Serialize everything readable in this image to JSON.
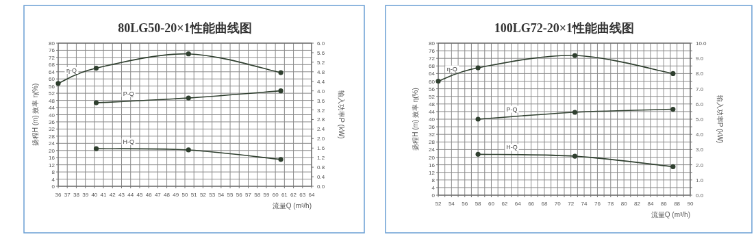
{
  "chart_data": [
    {
      "type": "line",
      "title": "80LG50-20×1性能曲线图",
      "xlabel": "流量Q (m³/h)",
      "ylabel": "扬程H (m)  效率 η(%)",
      "y2label": "输入功率P (kW)",
      "xlim": [
        36,
        64
      ],
      "xticks": [
        36,
        37,
        38,
        39,
        40,
        41,
        42,
        43,
        44,
        45,
        46,
        47,
        48,
        49,
        50,
        51,
        52,
        53,
        54,
        55,
        56,
        57,
        58,
        59,
        60,
        61,
        62,
        63,
        64
      ],
      "ylim": [
        0,
        80
      ],
      "yticks": [
        0,
        4,
        8,
        12,
        16,
        20,
        24,
        28,
        32,
        36,
        40,
        44,
        48,
        52,
        56,
        60,
        64,
        68,
        72,
        76,
        80
      ],
      "y2lim": [
        0,
        6
      ],
      "y2ticks": [
        {
          "value": 0,
          "label": "0.0"
        },
        {
          "value": 0.4,
          "label": "0.4"
        },
        {
          "value": 0.8,
          "label": "0.8"
        },
        {
          "value": 1.2,
          "label": "1.2"
        },
        {
          "value": 1.6,
          "label": "1.6"
        },
        {
          "value": 2,
          "label": "2.0"
        },
        {
          "value": 2.4,
          "label": "2.4"
        },
        {
          "value": 2.8,
          "label": "2.8"
        },
        {
          "value": 3.2,
          "label": "3.2"
        },
        {
          "value": 3.6,
          "label": "3.6"
        },
        {
          "value": 4,
          "label": "4.0"
        },
        {
          "value": 4.4,
          "label": "4.4"
        },
        {
          "value": 4.8,
          "label": "4.8"
        },
        {
          "value": 5.2,
          "label": "5.2"
        },
        {
          "value": 5.6,
          "label": "5.6"
        },
        {
          "value": 6,
          "label": "6.0"
        }
      ],
      "grid": true,
      "marker": "circle",
      "series": [
        {
          "name": "η-Q",
          "color": "#2f3f2f",
          "x": [
            36,
            40.2,
            50.4,
            60.6
          ],
          "values": [
            57.5,
            66,
            74,
            63.5
          ]
        },
        {
          "name": "P-Q",
          "color": "#2f3f2f",
          "axis": "y2",
          "x": [
            40.2,
            50.4,
            60.6
          ],
          "values": [
            3.5,
            3.7,
            4.0
          ]
        },
        {
          "name": "H-Q",
          "color": "#2f3f2f",
          "x": [
            40.2,
            50.4,
            60.6
          ],
          "values": [
            21,
            20.3,
            15
          ]
        }
      ]
    },
    {
      "type": "line",
      "title": "100LG72-20×1性能曲线图",
      "xlabel": "流量Q (m³/h)",
      "ylabel": "扬程H (m)  效率 η(%)",
      "y2label": "输入功率P (kW)",
      "xlim": [
        52,
        90
      ],
      "xticks": [
        52,
        {
          "value": 53,
          "label": null
        },
        54,
        {
          "value": 55,
          "label": null
        },
        56,
        {
          "value": 57,
          "label": null
        },
        58,
        {
          "value": 59,
          "label": null
        },
        60,
        {
          "value": 61,
          "label": null
        },
        62,
        {
          "value": 63,
          "label": null
        },
        64,
        {
          "value": 65,
          "label": null
        },
        66,
        {
          "value": 67,
          "label": null
        },
        68,
        {
          "value": 69,
          "label": null
        },
        70,
        {
          "value": 71,
          "label": null
        },
        72,
        {
          "value": 73,
          "label": null
        },
        74,
        {
          "value": 75,
          "label": null
        },
        76,
        {
          "value": 77,
          "label": null
        },
        78,
        {
          "value": 79,
          "label": null
        },
        80,
        {
          "value": 81,
          "label": null
        },
        82,
        {
          "value": 83,
          "label": null
        },
        84,
        {
          "value": 85,
          "label": null
        },
        86,
        {
          "value": 87,
          "label": null
        },
        88,
        {
          "value": 89,
          "label": null
        },
        90
      ],
      "ylim": [
        0,
        80
      ],
      "yticks": [
        0,
        4,
        8,
        12,
        16,
        20,
        24,
        28,
        32,
        36,
        40,
        44,
        48,
        52,
        56,
        60,
        64,
        68,
        72,
        76,
        80
      ],
      "y2lim": [
        0,
        10
      ],
      "y2ticks": [
        {
          "value": 0,
          "label": "0.0"
        },
        {
          "value": 0.5,
          "label": null
        },
        {
          "value": 1,
          "label": "1.0"
        },
        {
          "value": 1.5,
          "label": null
        },
        {
          "value": 2,
          "label": "2.0"
        },
        {
          "value": 2.5,
          "label": null
        },
        {
          "value": 3,
          "label": "3.0"
        },
        {
          "value": 3.5,
          "label": null
        },
        {
          "value": 4,
          "label": "4.0"
        },
        {
          "value": 4.5,
          "label": null
        },
        {
          "value": 5,
          "label": "5.0"
        },
        {
          "value": 5.5,
          "label": null
        },
        {
          "value": 6,
          "label": "6.0"
        },
        {
          "value": 6.5,
          "label": null
        },
        {
          "value": 7,
          "label": "7.0"
        },
        {
          "value": 7.5,
          "label": null
        },
        {
          "value": 8,
          "label": "8.0"
        },
        {
          "value": 8.5,
          "label": null
        },
        {
          "value": 9,
          "label": "9.0"
        },
        {
          "value": 9.5,
          "label": null
        },
        {
          "value": 10,
          "label": "10.0"
        }
      ],
      "grid": true,
      "marker": "circle",
      "series": [
        {
          "name": "η-Q",
          "color": "#2f3f2f",
          "x": [
            52,
            58,
            72.6,
            87.4
          ],
          "values": [
            60,
            67,
            73.5,
            64
          ]
        },
        {
          "name": "P-Q",
          "color": "#2f3f2f",
          "axis": "y2",
          "x": [
            58,
            72.6,
            87.4
          ],
          "values": [
            5.0,
            5.45,
            5.65
          ]
        },
        {
          "name": "H-Q",
          "color": "#2f3f2f",
          "x": [
            58,
            72.6,
            87.4
          ],
          "values": [
            21.5,
            20.5,
            15
          ]
        }
      ]
    }
  ]
}
